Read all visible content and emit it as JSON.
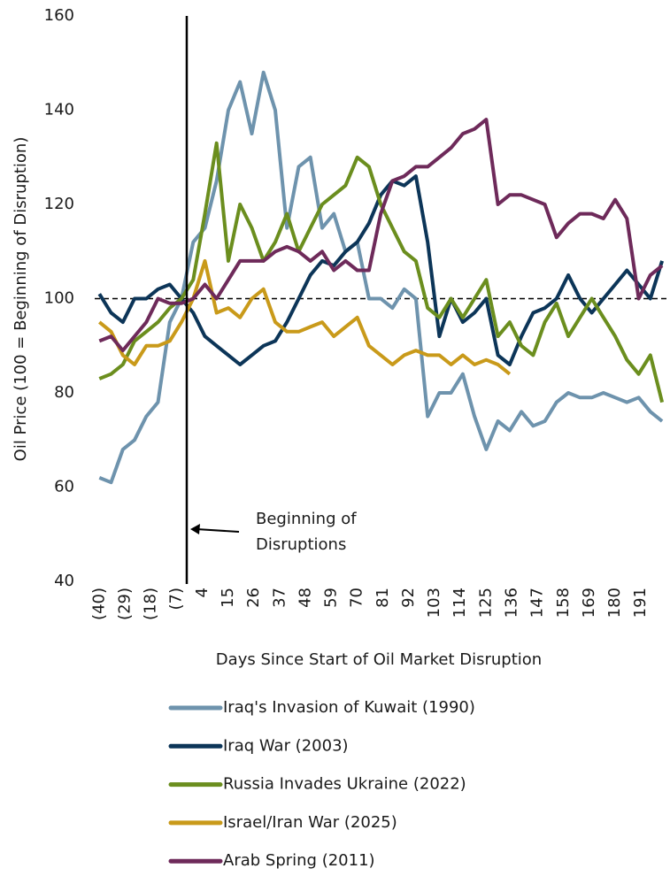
{
  "chart_data": {
    "type": "line",
    "y_label": "Oil Price (100 = Beginning of Disruption)",
    "x_label": "Days Since Start of Oil Market Disruption",
    "annotation": [
      "Beginning of",
      "Disruptions"
    ],
    "x": [
      -40,
      -35,
      -30,
      -25,
      -20,
      -15,
      -10,
      -5,
      0,
      5,
      10,
      15,
      20,
      25,
      30,
      35,
      40,
      45,
      50,
      55,
      60,
      65,
      70,
      75,
      80,
      85,
      90,
      95,
      100,
      105,
      110,
      115,
      120,
      125,
      130,
      135,
      140,
      145,
      150,
      155,
      160,
      165,
      170,
      175,
      180,
      185,
      190,
      195,
      200
    ],
    "xlim": [
      -42,
      203
    ],
    "xticks": [
      {
        "value": -40,
        "label": "(40)"
      },
      {
        "value": -29,
        "label": "(29)"
      },
      {
        "value": -18,
        "label": "(18)"
      },
      {
        "value": -7,
        "label": "(7)"
      },
      4,
      15,
      26,
      37,
      48,
      59,
      70,
      81,
      92,
      103,
      114,
      125,
      136,
      147,
      158,
      169,
      180,
      191
    ],
    "ylim": [
      40,
      160
    ],
    "yticks": [
      40,
      60,
      80,
      100,
      120,
      140,
      160
    ],
    "series": [
      {
        "name": "Iraq's Invasion of Kuwait (1990)",
        "color": "#6e93ad",
        "values": [
          62,
          61,
          68,
          70,
          75,
          78,
          95,
          100,
          112,
          115,
          125,
          140,
          146,
          135,
          148,
          140,
          115,
          128,
          130,
          115,
          118,
          110,
          112,
          100,
          100,
          98,
          102,
          100,
          75,
          80,
          80,
          84,
          75,
          68,
          74,
          72,
          76,
          73,
          74,
          78,
          80,
          79,
          79,
          80,
          79,
          78,
          79,
          76,
          74
        ]
      },
      {
        "name": "Iraq War (2003)",
        "color": "#0c3558",
        "values": [
          101,
          97,
          95,
          100,
          100,
          102,
          103,
          100,
          97,
          92,
          90,
          88,
          86,
          88,
          90,
          91,
          95,
          100,
          105,
          108,
          107,
          110,
          112,
          116,
          122,
          125,
          124,
          126,
          112,
          92,
          100,
          95,
          97,
          100,
          88,
          86,
          92,
          97,
          98,
          100,
          105,
          100,
          97,
          100,
          103,
          106,
          103,
          100,
          108
        ]
      },
      {
        "name": "Russia Invades Ukraine (2022)",
        "color": "#6b8e1e",
        "values": [
          83,
          84,
          86,
          91,
          93,
          95,
          98,
          100,
          104,
          118,
          133,
          108,
          120,
          115,
          108,
          112,
          118,
          110,
          115,
          120,
          122,
          124,
          130,
          128,
          120,
          115,
          110,
          108,
          98,
          96,
          100,
          96,
          100,
          104,
          92,
          95,
          90,
          88,
          95,
          99,
          92,
          96,
          100,
          96,
          92,
          87,
          84,
          88,
          78
        ]
      },
      {
        "name": "Israel/Iran War (2025)",
        "color": "#c99a1a",
        "values": [
          95,
          93,
          88,
          86,
          90,
          90,
          91,
          95,
          100,
          108,
          97,
          98,
          96,
          100,
          102,
          95,
          93,
          93,
          94,
          95,
          92,
          94,
          96,
          90,
          88,
          86,
          88,
          89,
          88,
          88,
          86,
          88,
          86,
          87,
          86,
          84,
          null,
          null,
          null,
          null,
          null,
          null,
          null,
          null,
          null,
          null,
          null,
          null,
          null
        ]
      },
      {
        "name": "Arab Spring (2011)",
        "color": "#6e2a5a",
        "values": [
          91,
          92,
          89,
          92,
          95,
          100,
          99,
          99,
          100,
          103,
          100,
          104,
          108,
          108,
          108,
          110,
          111,
          110,
          108,
          110,
          106,
          108,
          106,
          106,
          118,
          125,
          126,
          128,
          128,
          130,
          132,
          135,
          136,
          138,
          120,
          122,
          122,
          121,
          120,
          113,
          116,
          118,
          118,
          117,
          121,
          117,
          100,
          105,
          107
        ]
      }
    ]
  }
}
